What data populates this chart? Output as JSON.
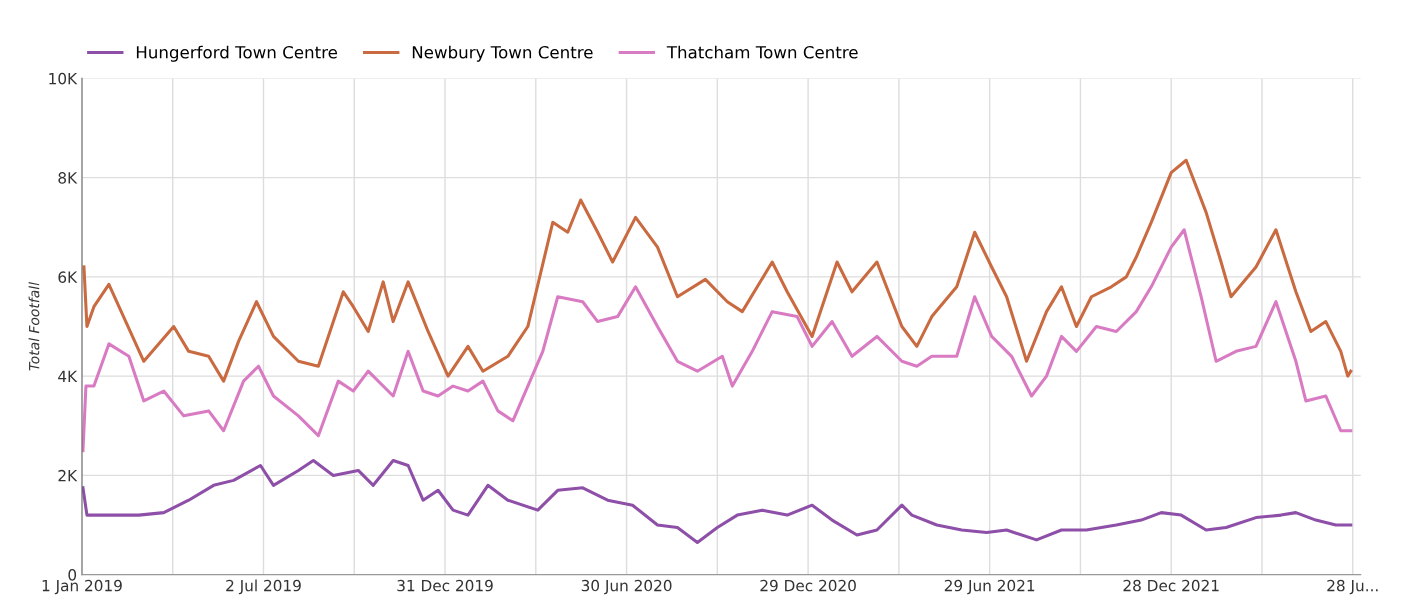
{
  "chart_data": {
    "type": "line",
    "ylabel": "Total Footfall",
    "xlim": [
      "2019-01-01",
      "2022-07-06"
    ],
    "xticks": [
      {
        "value": "2019-01-01",
        "label": "1 Jan 2019"
      },
      {
        "value": "2019-04-02",
        "label": null
      },
      {
        "value": "2019-07-02",
        "label": "2 Jul 2019"
      },
      {
        "value": "2019-10-01",
        "label": null
      },
      {
        "value": "2019-12-31",
        "label": "31 Dec 2019"
      },
      {
        "value": "2020-03-31",
        "label": null
      },
      {
        "value": "2020-06-30",
        "label": "30 Jun 2020"
      },
      {
        "value": "2020-09-29",
        "label": null
      },
      {
        "value": "2020-12-29",
        "label": "29 Dec 2020"
      },
      {
        "value": "2021-03-30",
        "label": null
      },
      {
        "value": "2021-06-29",
        "label": "29 Jun 2021"
      },
      {
        "value": "2021-09-28",
        "label": null
      },
      {
        "value": "2021-12-28",
        "label": "28 Dec 2021"
      },
      {
        "value": "2022-03-29",
        "label": null
      },
      {
        "value": "2022-06-28",
        "label": "28 Ju..."
      }
    ],
    "ylim": [
      0,
      10000
    ],
    "yticks": [
      {
        "value": 0,
        "label": "0"
      },
      {
        "value": 2000,
        "label": "2K"
      },
      {
        "value": 4000,
        "label": "4K"
      },
      {
        "value": 6000,
        "label": "6K"
      },
      {
        "value": 8000,
        "label": "8K"
      },
      {
        "value": 10000,
        "label": "10K"
      }
    ],
    "grid": true,
    "legend": "top left",
    "marker": "none",
    "line_style": "solid",
    "series": [
      {
        "name": "Hungerford Town Centre",
        "color": "#8e4fa8",
        "x": [
          "2019-01-02",
          "2019-01-06",
          "2019-01-28",
          "2019-02-27",
          "2019-03-24",
          "2019-04-18",
          "2019-05-13",
          "2019-06-02",
          "2019-06-29",
          "2019-07-12",
          "2019-08-06",
          "2019-08-21",
          "2019-09-10",
          "2019-10-05",
          "2019-10-20",
          "2019-11-09",
          "2019-11-24",
          "2019-12-09",
          "2019-12-24",
          "2020-01-08",
          "2020-01-23",
          "2020-02-12",
          "2020-03-03",
          "2020-04-02",
          "2020-04-22",
          "2020-05-17",
          "2020-06-11",
          "2020-07-06",
          "2020-07-31",
          "2020-08-20",
          "2020-09-09",
          "2020-09-29",
          "2020-10-19",
          "2020-11-13",
          "2020-12-08",
          "2021-01-02",
          "2021-01-22",
          "2021-02-16",
          "2021-03-08",
          "2021-04-02",
          "2021-04-12",
          "2021-05-07",
          "2021-06-01",
          "2021-06-26",
          "2021-07-16",
          "2021-08-15",
          "2021-09-09",
          "2021-10-04",
          "2021-11-03",
          "2021-11-28",
          "2021-12-18",
          "2022-01-07",
          "2022-02-01",
          "2022-02-21",
          "2022-03-23",
          "2022-04-17",
          "2022-05-02",
          "2022-05-22",
          "2022-06-11",
          "2022-06-26"
        ],
        "values": [
          1750,
          1200,
          1200,
          1200,
          1250,
          1500,
          1800,
          1900,
          2200,
          1800,
          2100,
          2300,
          2000,
          2100,
          1800,
          2300,
          2200,
          1500,
          1700,
          1300,
          1200,
          1800,
          1500,
          1300,
          1700,
          1750,
          1500,
          1400,
          1000,
          950,
          650,
          950,
          1200,
          1300,
          1200,
          1400,
          1100,
          800,
          900,
          1400,
          1200,
          1000,
          900,
          850,
          900,
          700,
          900,
          900,
          1000,
          1100,
          1250,
          1200,
          900,
          950,
          1150,
          1200,
          1250,
          1100,
          1000,
          1000
        ]
      },
      {
        "name": "Newbury Town Centre",
        "color": "#c96a40",
        "x": [
          "2019-01-03",
          "2019-01-06",
          "2019-01-13",
          "2019-01-28",
          "2019-03-04",
          "2019-04-03",
          "2019-04-18",
          "2019-05-08",
          "2019-05-23",
          "2019-06-07",
          "2019-06-25",
          "2019-07-12",
          "2019-08-06",
          "2019-08-26",
          "2019-09-20",
          "2019-09-30",
          "2019-10-15",
          "2019-10-30",
          "2019-11-09",
          "2019-11-24",
          "2019-12-14",
          "2020-01-03",
          "2020-01-23",
          "2020-02-07",
          "2020-03-03",
          "2020-03-23",
          "2020-04-17",
          "2020-05-02",
          "2020-05-15",
          "2020-06-01",
          "2020-06-16",
          "2020-07-09",
          "2020-07-31",
          "2020-08-20",
          "2020-09-17",
          "2020-10-09",
          "2020-10-24",
          "2020-11-23",
          "2020-12-08",
          "2021-01-02",
          "2021-01-27",
          "2021-02-11",
          "2021-03-08",
          "2021-04-02",
          "2021-04-17",
          "2021-05-02",
          "2021-05-27",
          "2021-06-14",
          "2021-07-01",
          "2021-07-16",
          "2021-08-05",
          "2021-08-25",
          "2021-09-09",
          "2021-09-24",
          "2021-10-09",
          "2021-10-29",
          "2021-11-13",
          "2021-11-23",
          "2021-12-08",
          "2021-12-28",
          "2022-01-12",
          "2022-02-01",
          "2022-02-16",
          "2022-02-26",
          "2022-03-23",
          "2022-04-12",
          "2022-05-02",
          "2022-05-17",
          "2022-06-01",
          "2022-06-16",
          "2022-06-23",
          "2022-06-26"
        ],
        "values": [
          6200,
          5000,
          5400,
          5850,
          4300,
          5000,
          4500,
          4400,
          3900,
          4700,
          5500,
          4800,
          4300,
          4200,
          5700,
          5400,
          4900,
          5900,
          5100,
          5900,
          4900,
          4000,
          4600,
          4100,
          4400,
          5000,
          7100,
          6900,
          7550,
          6900,
          6300,
          7200,
          6600,
          5600,
          5950,
          5500,
          5300,
          6300,
          5700,
          4800,
          6300,
          5700,
          6300,
          5000,
          4600,
          5200,
          5800,
          6900,
          6200,
          5600,
          4300,
          5300,
          5800,
          5000,
          5600,
          5800,
          6000,
          6400,
          7100,
          8100,
          8350,
          7300,
          6300,
          5600,
          6200,
          6950,
          5700,
          4900,
          5100,
          4500,
          4000,
          4100
        ]
      },
      {
        "name": "Thatcham Town Centre",
        "color": "#d97bc3",
        "x": [
          "2019-01-02",
          "2019-01-05",
          "2019-01-13",
          "2019-01-28",
          "2019-02-17",
          "2019-03-04",
          "2019-03-24",
          "2019-04-13",
          "2019-05-08",
          "2019-05-23",
          "2019-06-12",
          "2019-06-27",
          "2019-07-12",
          "2019-08-06",
          "2019-08-26",
          "2019-09-15",
          "2019-09-30",
          "2019-10-15",
          "2019-11-09",
          "2019-11-24",
          "2019-12-09",
          "2019-12-24",
          "2020-01-08",
          "2020-01-23",
          "2020-02-07",
          "2020-02-22",
          "2020-03-08",
          "2020-03-23",
          "2020-04-07",
          "2020-04-22",
          "2020-05-17",
          "2020-06-01",
          "2020-06-21",
          "2020-07-09",
          "2020-07-31",
          "2020-08-20",
          "2020-09-09",
          "2020-10-04",
          "2020-10-14",
          "2020-11-03",
          "2020-11-23",
          "2020-12-18",
          "2021-01-02",
          "2021-01-22",
          "2021-02-11",
          "2021-03-08",
          "2021-04-02",
          "2021-04-17",
          "2021-05-02",
          "2021-05-27",
          "2021-06-14",
          "2021-07-01",
          "2021-07-21",
          "2021-08-10",
          "2021-08-25",
          "2021-09-09",
          "2021-09-24",
          "2021-10-14",
          "2021-11-03",
          "2021-11-23",
          "2021-12-08",
          "2021-12-28",
          "2022-01-10",
          "2022-01-27",
          "2022-02-11",
          "2022-03-03",
          "2022-03-23",
          "2022-04-12",
          "2022-05-02",
          "2022-05-12",
          "2022-06-01",
          "2022-06-16",
          "2022-06-26"
        ],
        "values": [
          2500,
          3800,
          3800,
          4650,
          4400,
          3500,
          3700,
          3200,
          3300,
          2900,
          3900,
          4200,
          3600,
          3200,
          2800,
          3900,
          3700,
          4100,
          3600,
          4500,
          3700,
          3600,
          3800,
          3700,
          3900,
          3300,
          3100,
          3800,
          4500,
          5600,
          5500,
          5100,
          5200,
          5800,
          5000,
          4300,
          4100,
          4400,
          3800,
          4500,
          5300,
          5200,
          4600,
          5100,
          4400,
          4800,
          4300,
          4200,
          4400,
          4400,
          5600,
          4800,
          4400,
          3600,
          4000,
          4800,
          4500,
          5000,
          4900,
          5300,
          5800,
          6600,
          6950,
          5600,
          4300,
          4500,
          4600,
          5500,
          4300,
          3500,
          3600,
          2900,
          2900
        ]
      }
    ]
  }
}
